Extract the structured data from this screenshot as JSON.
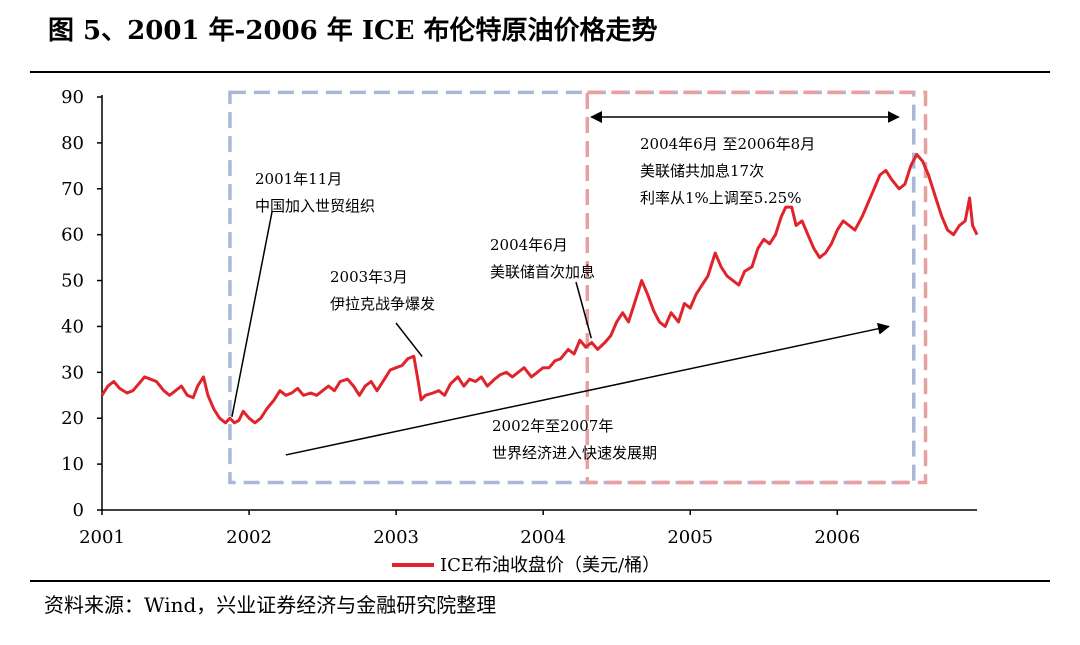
{
  "header": {
    "title": "图 5、2001 年-2006 年 ICE 布伦特原油价格走势"
  },
  "footer": {
    "source": "资料来源：Wind，兴业证券经济与金融研究院整理"
  },
  "colors": {
    "line": "#e0242b",
    "box_blue": "#a9b8d8",
    "box_red": "#e8a0a0",
    "arrow": "#000000"
  },
  "chart_data": {
    "type": "line",
    "title": "",
    "xlabel": "",
    "ylabel": "",
    "categories": [
      "2001",
      "2002",
      "2003",
      "2004",
      "2005",
      "2006"
    ],
    "y_ticks": [
      "0",
      "10",
      "20",
      "30",
      "40",
      "50",
      "60",
      "70",
      "80",
      "90"
    ],
    "ylim": [
      0,
      90
    ],
    "xlim": [
      2001.0,
      2006.95
    ],
    "grid": false,
    "legend": {
      "position": "bottom-center",
      "entries": [
        "ICE布油收盘价（美元/桶）"
      ]
    },
    "series": [
      {
        "name": "ICE布油收盘价（美元/桶）",
        "x": [
          2001.0,
          2001.04,
          2001.08,
          2001.12,
          2001.17,
          2001.21,
          2001.25,
          2001.29,
          2001.33,
          2001.37,
          2001.42,
          2001.46,
          2001.5,
          2001.54,
          2001.58,
          2001.62,
          2001.65,
          2001.69,
          2001.72,
          2001.76,
          2001.8,
          2001.84,
          2001.87,
          2001.9,
          2001.93,
          2001.96,
          2002.0,
          2002.04,
          2002.08,
          2002.12,
          2002.17,
          2002.21,
          2002.25,
          2002.29,
          2002.33,
          2002.37,
          2002.42,
          2002.46,
          2002.5,
          2002.54,
          2002.58,
          2002.62,
          2002.67,
          2002.71,
          2002.75,
          2002.79,
          2002.83,
          2002.87,
          2002.92,
          2002.96,
          2003.0,
          2003.04,
          2003.08,
          2003.12,
          2003.15,
          2003.17,
          2003.2,
          2003.25,
          2003.29,
          2003.33,
          2003.37,
          2003.42,
          2003.46,
          2003.5,
          2003.54,
          2003.58,
          2003.62,
          2003.67,
          2003.71,
          2003.75,
          2003.79,
          2003.83,
          2003.87,
          2003.92,
          2003.96,
          2004.0,
          2004.04,
          2004.08,
          2004.12,
          2004.17,
          2004.21,
          2004.25,
          2004.29,
          2004.33,
          2004.37,
          2004.42,
          2004.46,
          2004.5,
          2004.54,
          2004.58,
          2004.62,
          2004.67,
          2004.71,
          2004.75,
          2004.79,
          2004.83,
          2004.87,
          2004.92,
          2004.96,
          2005.0,
          2005.04,
          2005.08,
          2005.12,
          2005.17,
          2005.21,
          2005.25,
          2005.29,
          2005.33,
          2005.37,
          2005.42,
          2005.46,
          2005.5,
          2005.54,
          2005.58,
          2005.62,
          2005.65,
          2005.69,
          2005.72,
          2005.76,
          2005.8,
          2005.84,
          2005.88,
          2005.92,
          2005.96,
          2006.0,
          2006.04,
          2006.08,
          2006.12,
          2006.17,
          2006.21,
          2006.25,
          2006.29,
          2006.33,
          2006.37,
          2006.42,
          2006.46,
          2006.5,
          2006.54,
          2006.58,
          2006.62,
          2006.67,
          2006.71,
          2006.75,
          2006.79,
          2006.83,
          2006.87,
          2006.9,
          2006.92,
          2006.95
        ],
        "values": [
          25,
          27,
          28,
          26.5,
          25.5,
          26,
          27.5,
          29,
          28.5,
          28,
          26,
          25,
          26,
          27,
          25,
          24.5,
          27,
          29,
          25,
          22,
          20,
          19,
          20,
          19,
          19.5,
          21.5,
          20,
          19,
          20,
          22,
          24,
          26,
          25,
          25.5,
          26.5,
          25,
          25.5,
          25,
          26,
          27,
          26,
          28,
          28.5,
          27,
          25,
          27,
          28,
          26,
          28.5,
          30.5,
          31,
          31.5,
          33,
          33.5,
          28,
          24,
          25,
          25.5,
          26,
          25,
          27.5,
          29,
          27,
          28.5,
          28,
          29,
          27,
          28.5,
          29.5,
          30,
          29,
          30,
          31,
          29,
          30,
          31,
          31,
          32.5,
          33,
          35,
          34,
          37,
          35.5,
          36.5,
          35,
          36.5,
          38,
          41,
          43,
          41,
          45,
          50,
          47,
          43.5,
          41,
          40,
          43,
          41,
          45,
          44,
          47,
          49,
          51,
          56,
          53,
          51,
          50,
          49,
          52,
          53,
          57,
          59,
          58,
          60,
          64,
          66,
          66,
          62,
          63,
          60,
          57,
          55,
          56,
          58,
          61,
          63,
          62,
          61,
          64,
          67,
          70,
          73,
          74,
          72,
          70,
          71,
          75,
          77.5,
          76,
          73,
          68,
          64,
          61,
          60,
          62,
          63,
          68,
          62,
          60
        ]
      }
    ],
    "annotations": [
      {
        "lines": [
          "2001年11月",
          "中国加入世贸组织"
        ],
        "x": 2001.87,
        "y": 19
      },
      {
        "lines": [
          "2003年3月",
          "伊拉克战争爆发"
        ],
        "x": 2003.15,
        "y": 33
      },
      {
        "lines": [
          "2004年6月",
          "美联储首次加息"
        ],
        "x": 2004.3,
        "y": 37
      },
      {
        "lines": [
          "2004年6月 至2006年8月",
          "美联储共加息17次",
          "利率从1%上调至5.25%"
        ],
        "x_from": 2004.3,
        "x_to": 2006.58
      },
      {
        "lines": [
          "2002年至2007年",
          "世界经济进入快速发展期"
        ],
        "x_from": 2002.25,
        "y_from": 12,
        "x_to": 2006.35,
        "y_to": 40
      }
    ],
    "regions": [
      {
        "name": "blue-dashed-box",
        "x_from": 2001.87,
        "x_to": 2006.52,
        "y_from": 6,
        "y_to": 91
      },
      {
        "name": "red-dashed-box",
        "x_from": 2004.3,
        "x_to": 2006.6,
        "y_from": 6,
        "y_to": 91
      }
    ]
  }
}
